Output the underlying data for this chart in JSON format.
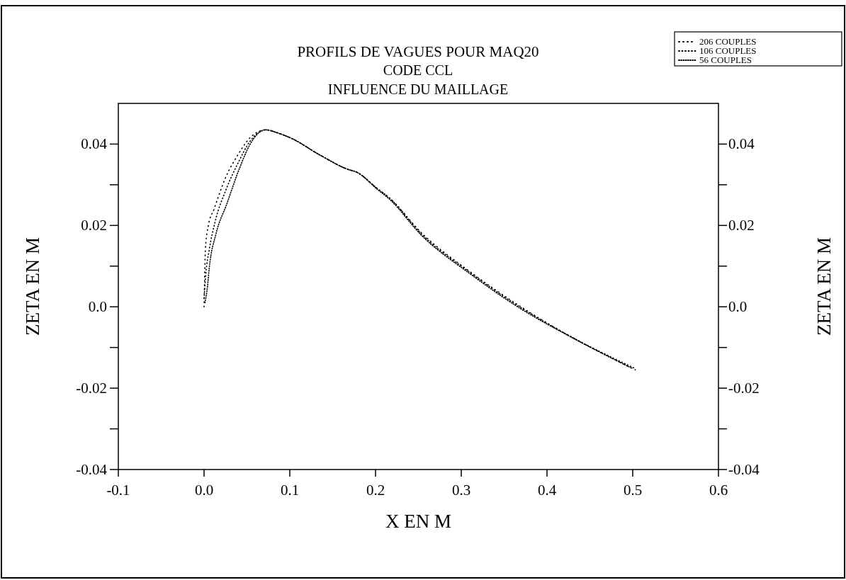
{
  "chart_data": {
    "type": "line",
    "title": "PROFILS DE VAGUES POUR MAQ20",
    "subtitle": "CODE CCL\nINFLUENCE DU MAILLAGE",
    "xlabel": "X EN M",
    "ylabel": "ZETA EN M",
    "y2label": "ZETA EN M",
    "xlim": [
      -0.1,
      0.6
    ],
    "xticks": [
      -0.1,
      {
        "value": 0,
        "label": "0.0"
      },
      0.1,
      0.2,
      0.3,
      0.4,
      0.5,
      0.6
    ],
    "ylim": [
      -0.04,
      0.05
    ],
    "yticks": [
      -0.04,
      {
        "value": -0.03,
        "label": null
      },
      -0.02,
      {
        "value": -0.01,
        "label": null
      },
      {
        "value": 0,
        "label": "0.0"
      },
      {
        "value": 0.01,
        "label": null
      },
      0.02,
      {
        "value": 0.03,
        "label": null
      },
      0.04
    ],
    "y2lim": [
      -0.04,
      0.05
    ],
    "y2ticks": [
      -0.04,
      {
        "value": -0.03,
        "label": null
      },
      -0.02,
      {
        "value": -0.01,
        "label": null
      },
      {
        "value": 0,
        "label": "0.0"
      },
      {
        "value": 0.01,
        "label": null
      },
      0.02,
      {
        "value": 0.03,
        "label": null
      },
      0.04
    ],
    "legend": "top right",
    "line_style": "dotted",
    "grid": false,
    "series": [
      {
        "name": "206 COUPLES",
        "color": "#000000",
        "x": [
          0,
          0.0017,
          0.005,
          0.0116,
          0.0256,
          0.039,
          0.053,
          0.072,
          0.085,
          0.102,
          0.136,
          0.169,
          0.177,
          0.2025,
          0.216,
          0.254,
          0.311,
          0.368,
          0.425,
          0.503
        ],
        "values": [
          0,
          0.0146,
          0.02,
          0.024,
          0.032,
          0.0372,
          0.0414,
          0.0435,
          0.0428,
          0.0414,
          0.0372,
          0.0337,
          0.0332,
          0.029,
          0.0268,
          0.0181,
          0.0085,
          0.0002,
          -0.007,
          -0.0155
        ]
      },
      {
        "name": "106 COUPLES",
        "color": "#000000",
        "x": [
          0,
          0.002,
          0.006,
          0.013,
          0.026,
          0.04,
          0.053,
          0.072,
          0.085,
          0.102,
          0.136,
          0.169,
          0.177,
          0.2025,
          0.216,
          0.254,
          0.311,
          0.368,
          0.425,
          0.503
        ],
        "values": [
          0.002,
          0.008,
          0.014,
          0.021,
          0.029,
          0.0355,
          0.0405,
          0.0435,
          0.0428,
          0.0414,
          0.0372,
          0.0337,
          0.0332,
          0.029,
          0.0268,
          0.0178,
          0.0083,
          0,
          -0.007,
          -0.0152
        ]
      },
      {
        "name": "56 COUPLES",
        "color": "#000000",
        "x": [
          0.001,
          0.004,
          0.006,
          0.014,
          0.026,
          0.042,
          0.053,
          0.072,
          0.085,
          0.102,
          0.136,
          0.169,
          0.177,
          0.2025,
          0.216,
          0.254,
          0.311,
          0.368,
          0.425,
          0.498
        ],
        "values": [
          0.001,
          0.005,
          0.0094,
          0.018,
          0.025,
          0.0344,
          0.0397,
          0.0435,
          0.0428,
          0.0414,
          0.0372,
          0.0337,
          0.0332,
          0.0288,
          0.0265,
          0.0175,
          0.008,
          -0.0003,
          -0.0071,
          -0.015
        ]
      }
    ]
  }
}
